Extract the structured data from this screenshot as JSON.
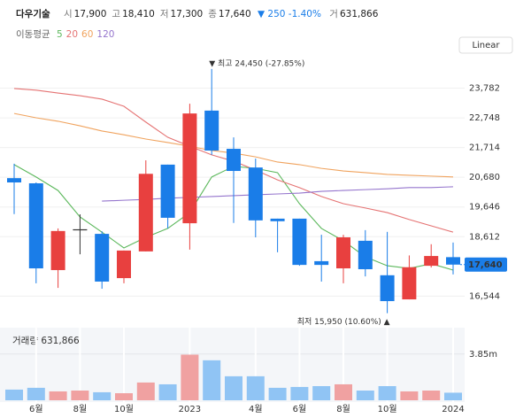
{
  "header": {
    "name": "다우기술",
    "items": [
      {
        "label": "시",
        "value": "17,900"
      },
      {
        "label": "고",
        "value": "18,410"
      },
      {
        "label": "저",
        "value": "17,300"
      },
      {
        "label": "종",
        "value": "17,640"
      }
    ],
    "change": "▼ 250 -1.40%",
    "volume_label": "거",
    "volume_value": "631,866"
  },
  "chart_data": [
    {
      "type": "candlestick",
      "moving_average_label": "이동평균",
      "scale_label": "Linear",
      "high_label": "▼ 최고 24,450 (-27.85%)",
      "low_label": "최저 15,950 (10.60%) ▲",
      "last_price_label": "17,640",
      "categories": [
        null,
        "6월",
        null,
        "8월",
        null,
        "10월",
        null,
        null,
        "2023",
        null,
        null,
        "4월",
        null,
        "6월",
        null,
        "8월",
        null,
        "10월",
        null,
        null,
        "2024"
      ],
      "open": [
        20650,
        20470,
        17450,
        18870,
        18710,
        17170,
        18100,
        21120,
        19080,
        23000,
        21670,
        21020,
        19240,
        19240,
        17760,
        17510,
        18470,
        17270,
        16430,
        17600,
        17900
      ],
      "high": [
        21150,
        20500,
        18900,
        19390,
        18800,
        18130,
        21270,
        21120,
        23240,
        24450,
        22070,
        21330,
        19240,
        19240,
        18680,
        18680,
        18840,
        18780,
        17960,
        18350,
        18410
      ],
      "low": [
        19400,
        16990,
        16830,
        18000,
        16800,
        16990,
        18100,
        18900,
        18160,
        21460,
        19090,
        18590,
        18070,
        17600,
        17050,
        16990,
        17230,
        15950,
        16430,
        17540,
        17300
      ],
      "close": [
        20500,
        17510,
        18810,
        18870,
        17050,
        18130,
        20800,
        19270,
        22900,
        21610,
        20900,
        19180,
        19150,
        17630,
        17630,
        18590,
        17480,
        16370,
        17550,
        17940,
        17640
      ],
      "up_color": "#e8403f",
      "down_color": "#1a7de8",
      "flat_color": "#333333",
      "series": [
        {
          "name": "5",
          "color": "#5cb85c",
          "values": [
            21120,
            20690,
            20220,
            19300,
            18770,
            18220,
            18590,
            18900,
            19450,
            20690,
            21060,
            20990,
            20840,
            19760,
            18900,
            18470,
            17910,
            17600,
            17510,
            17670,
            17450
          ]
        },
        {
          "name": "20",
          "color": "#e57373",
          "values": [
            23770,
            23710,
            23610,
            23520,
            23400,
            23150,
            22600,
            22070,
            21760,
            21460,
            21240,
            20930,
            20590,
            20320,
            20010,
            19760,
            19610,
            19450,
            19210,
            18990,
            18770
          ]
        },
        {
          "name": "60",
          "color": "#f0a35e",
          "values": [
            22900,
            22750,
            22630,
            22470,
            22290,
            22160,
            22010,
            21890,
            21760,
            21610,
            21520,
            21390,
            21210,
            21120,
            20990,
            20900,
            20840,
            20780,
            20750,
            20720,
            20690
          ]
        },
        {
          "name": "120",
          "color": "#9575cd",
          "values": [
            null,
            null,
            null,
            null,
            19850,
            19880,
            19910,
            19950,
            19980,
            20010,
            20040,
            20070,
            20100,
            20130,
            20190,
            20220,
            20250,
            20280,
            20320,
            20320,
            20350
          ]
        }
      ],
      "ylim": [
        15600,
        25000
      ],
      "yticks": [
        {
          "value": 16544,
          "label": "16,544"
        },
        {
          "value": 18612,
          "label": "18,612"
        },
        {
          "value": 19646,
          "label": "19,646"
        },
        {
          "value": 20680,
          "label": "20,680"
        },
        {
          "value": 21714,
          "label": "21,714"
        },
        {
          "value": 22748,
          "label": "22,748"
        },
        {
          "value": 23782,
          "label": "23,782"
        }
      ]
    },
    {
      "type": "bar",
      "title": "거래량 631,866",
      "values": [
        890000,
        1040000,
        740000,
        810000,
        670000,
        590000,
        1480000,
        1330000,
        3800000,
        3330000,
        2000000,
        2000000,
        1040000,
        1110000,
        1180000,
        1330000,
        810000,
        1180000,
        740000,
        810000,
        631866
      ],
      "up_color": "#f0a1a1",
      "down_color": "#90c4f4",
      "ylim": [
        0,
        5900000
      ],
      "yticks": [
        {
          "value": 3850000,
          "label": "3.85m"
        }
      ]
    }
  ]
}
